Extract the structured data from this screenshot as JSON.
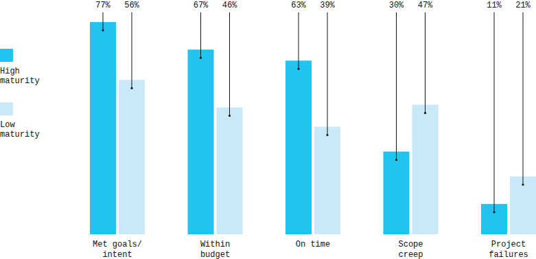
{
  "chart_data": {
    "type": "bar",
    "categories": [
      "Met goals/\nintent",
      "Within\nbudget",
      "On time",
      "Scope\ncreep",
      "Project\nfailures"
    ],
    "series": [
      {
        "name": "High\nmaturity",
        "color": "#22c3ef",
        "values": [
          77,
          67,
          63,
          30,
          11
        ],
        "value_labels": [
          "77%",
          "67%",
          "63%",
          "30%",
          "11%"
        ]
      },
      {
        "name": "Low\nmaturity",
        "color": "#c9e9f9",
        "values": [
          56,
          46,
          39,
          47,
          21
        ],
        "value_labels": [
          "56%",
          "46%",
          "39%",
          "47%",
          "21%"
        ]
      }
    ],
    "ylim": [
      0,
      85
    ],
    "data_labels": true,
    "tick_labels": "x",
    "legend": "left"
  }
}
